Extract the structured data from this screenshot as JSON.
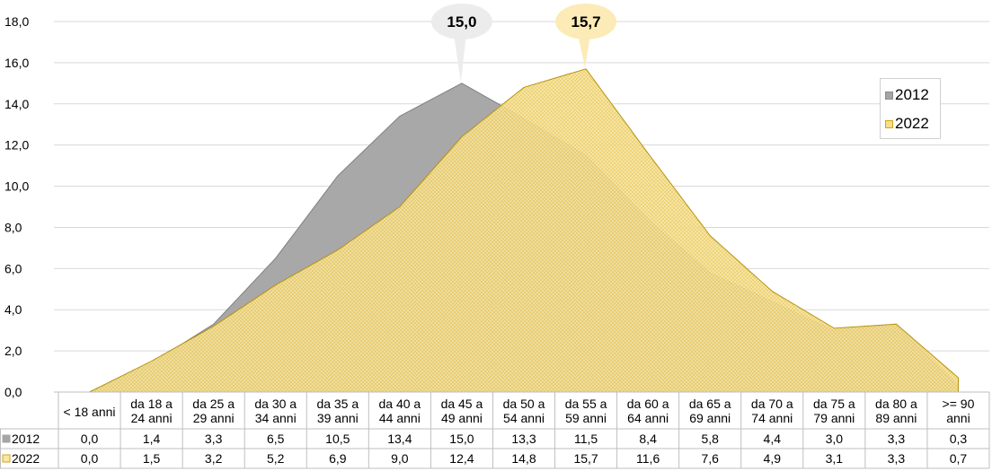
{
  "chart_data": {
    "type": "area",
    "categories": [
      [
        "< 18 anni"
      ],
      [
        "da 18 a",
        "24 anni"
      ],
      [
        "da 25 a",
        "29 anni"
      ],
      [
        "da 30 a",
        "34 anni"
      ],
      [
        "da 35 a",
        "39 anni"
      ],
      [
        "da 40 a",
        "44 anni"
      ],
      [
        "da 45 a",
        "49 anni"
      ],
      [
        "da 50 a",
        "54 anni"
      ],
      [
        "da 55 a",
        "59 anni"
      ],
      [
        "da 60 a",
        "64 anni"
      ],
      [
        "da 65 a",
        "69 anni"
      ],
      [
        "da 70 a",
        "74 anni"
      ],
      [
        "da 75 a",
        "79 anni"
      ],
      [
        "da 80 a",
        "89 anni"
      ],
      [
        ">= 90",
        "anni"
      ]
    ],
    "series": [
      {
        "name": "2012",
        "color": "#a5a5a5",
        "stroke": "#7f7f7f",
        "values": [
          0.0,
          1.4,
          3.3,
          6.5,
          10.5,
          13.4,
          15.0,
          13.3,
          11.5,
          8.4,
          5.8,
          4.4,
          3.0,
          3.3,
          0.3
        ],
        "value_labels": [
          "0,0",
          "1,4",
          "3,3",
          "6,5",
          "10,5",
          "13,4",
          "15,0",
          "13,3",
          "11,5",
          "8,4",
          "5,8",
          "4,4",
          "3,0",
          "3,3",
          "0,3"
        ],
        "peak_callout": "15,0"
      },
      {
        "name": "2022",
        "color": "#e3bc3c",
        "stroke": "#b8920f",
        "values": [
          0.0,
          1.5,
          3.2,
          5.2,
          6.9,
          9.0,
          12.4,
          14.8,
          15.7,
          11.6,
          7.6,
          4.9,
          3.1,
          3.3,
          0.7
        ],
        "value_labels": [
          "0,0",
          "1,5",
          "3,2",
          "5,2",
          "6,9",
          "9,0",
          "12,4",
          "14,8",
          "15,7",
          "11,6",
          "7,6",
          "4,9",
          "3,1",
          "3,3",
          "0,7"
        ],
        "peak_callout": "15,7"
      }
    ],
    "y_ticks": [
      "0,0",
      "2,0",
      "4,0",
      "6,0",
      "8,0",
      "10,0",
      "12,0",
      "14,0",
      "16,0",
      "18,0"
    ],
    "ylim": [
      0,
      18
    ],
    "grid": true,
    "legend_position": "right",
    "title": "",
    "xlabel": "",
    "ylabel": ""
  }
}
